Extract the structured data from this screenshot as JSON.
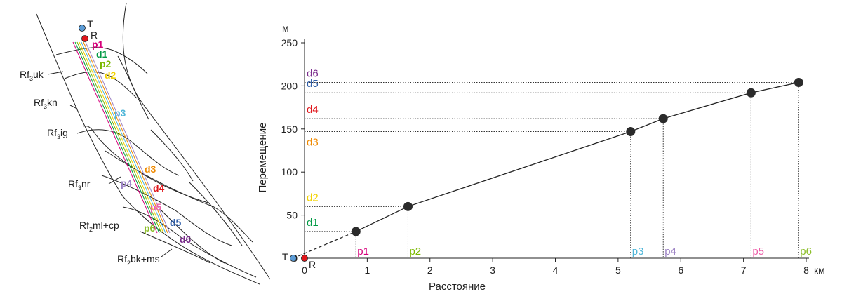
{
  "map": {
    "points": {
      "T": "T",
      "R": "R"
    },
    "line_labels": [
      {
        "text": "p1",
        "color": "#d6007a"
      },
      {
        "text": "d1",
        "color": "#009a44"
      },
      {
        "text": "p2",
        "color": "#7ab800"
      },
      {
        "text": "d2",
        "color": "#f2d200"
      },
      {
        "text": "p3",
        "color": "#4fb6d8"
      },
      {
        "text": "d3",
        "color": "#f08a00"
      },
      {
        "text": "p4",
        "color": "#9c82c4"
      },
      {
        "text": "d4",
        "color": "#e0161b"
      },
      {
        "text": "p5",
        "color": "#ec5fa8"
      },
      {
        "text": "d5",
        "color": "#2f5ea8"
      },
      {
        "text": "p6",
        "color": "#8cbe2a"
      },
      {
        "text": "d6",
        "color": "#7a2b8c"
      }
    ],
    "units": [
      {
        "prefix": "Rf",
        "sub": "3",
        "rest": "uk"
      },
      {
        "prefix": "Rf",
        "sub": "3",
        "rest": "kn"
      },
      {
        "prefix": "Rf",
        "sub": "3",
        "rest": "ig"
      },
      {
        "prefix": "Rf",
        "sub": "3",
        "rest": "nr"
      },
      {
        "prefix": "Rf",
        "sub": "2",
        "rest": "ml+cp"
      },
      {
        "prefix": "Rf",
        "sub": "2",
        "rest": "bk+ms"
      }
    ]
  },
  "chart_data": {
    "type": "line",
    "xlabel": "Расстояние",
    "ylabel": "Перемещение",
    "x_unit": "км",
    "y_unit": "м",
    "xlim": [
      0,
      8
    ],
    "ylim": [
      0,
      250
    ],
    "xticks": [
      0,
      1,
      2,
      3,
      4,
      5,
      6,
      7,
      8
    ],
    "yticks": [
      0,
      50,
      100,
      150,
      200,
      250
    ],
    "grid": false,
    "origin_points": [
      {
        "label": "T",
        "x": -0.18,
        "y": 0,
        "color": "#5b9bd5"
      },
      {
        "label": "R",
        "x": 0,
        "y": 0,
        "color": "#e0161b"
      }
    ],
    "points": [
      {
        "x": 0.82,
        "y": 31,
        "xlabel": "p1",
        "xcolor": "#d6007a",
        "ylabel": "d1",
        "ycolor": "#009a44"
      },
      {
        "x": 1.65,
        "y": 60,
        "xlabel": "p2",
        "xcolor": "#7ab800",
        "ylabel": "d2",
        "ycolor": "#f2d200"
      },
      {
        "x": 5.2,
        "y": 147,
        "xlabel": "p3",
        "xcolor": "#4fb6d8",
        "ylabel": "d3",
        "ycolor": "#f08a00"
      },
      {
        "x": 5.72,
        "y": 162,
        "xlabel": "p4",
        "xcolor": "#9c82c4",
        "ylabel": "d4",
        "ycolor": "#e0161b"
      },
      {
        "x": 7.12,
        "y": 192,
        "xlabel": "p5",
        "xcolor": "#ec5fa8",
        "ylabel": "d5",
        "ycolor": "#2f5ea8"
      },
      {
        "x": 7.88,
        "y": 204,
        "xlabel": "p6",
        "xcolor": "#8cbe2a",
        "ylabel": "d6",
        "ycolor": "#7a2b8c"
      }
    ]
  }
}
